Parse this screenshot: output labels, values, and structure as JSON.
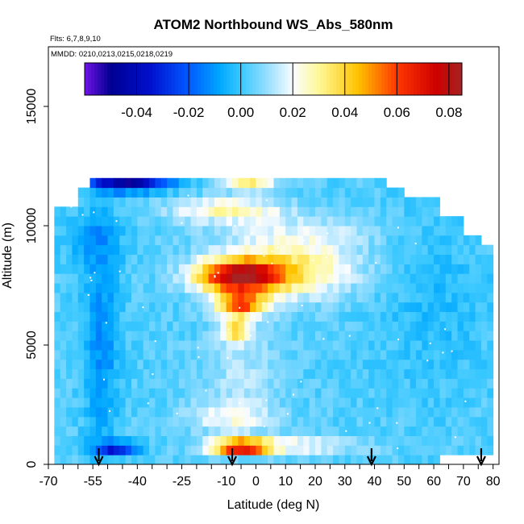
{
  "chart_data": {
    "type": "heatmap",
    "title": "ATOM2 Northbound WS_Abs_580nm",
    "flights_label": "Flts: 6,7,8,9,10",
    "dates_label": "MMDD: 0210,0213,0215,0218,0219",
    "xlabel": "Latitude (deg N)",
    "ylabel": "Altitude (m)",
    "xlim": [
      -70,
      82
    ],
    "ylim": [
      0,
      17500
    ],
    "x_tick_labels": [
      "-70",
      "-55",
      "-40",
      "-25",
      "-10",
      "0",
      "10",
      "20",
      "30",
      "40",
      "50",
      "60",
      "70",
      "80"
    ],
    "y_tick_labels": [
      "0",
      "5000",
      "10000",
      "15000"
    ],
    "colorbar": {
      "range": [
        -0.06,
        0.085
      ],
      "tick_labels": [
        "-0.04",
        "-0.02",
        "0.00",
        "0.02",
        "0.04",
        "0.06",
        "0.08"
      ]
    },
    "grid_cell": {
      "lat_step": 2,
      "alt_step": 400,
      "lat_start": -68,
      "lat_end": 80
    },
    "row_extents": [
      {
        "alt_min": 0,
        "alt_max": 400,
        "lat_min": -68,
        "lat_max": 62
      },
      {
        "alt_min": 400,
        "alt_max": 11000,
        "lat_min": -68,
        "lat_max": 80
      },
      {
        "alt_min": 11000,
        "alt_max": 11500,
        "lat_min": -60,
        "lat_max": 50
      },
      {
        "alt_min": 11500,
        "alt_max": 12000,
        "lat_min": -56,
        "lat_max": 43
      }
    ],
    "features": [
      {
        "name": "upper-troposphere-absorbing-plume",
        "lat": -5,
        "alt": 7800,
        "value": 0.075
      },
      {
        "name": "boundary-layer-absorbing-layer",
        "lat": -5,
        "alt": 800,
        "value": 0.08
      },
      {
        "name": "southern-high-altitude-negative",
        "lat": -45,
        "alt": 11700,
        "value": -0.045
      },
      {
        "name": "southern-low-altitude-negative",
        "lat": -48,
        "alt": 700,
        "value": -0.035
      },
      {
        "name": "mid-troposphere-background",
        "lat": 30,
        "alt": 4000,
        "value": 0.005
      }
    ],
    "flight_markers": [
      -53,
      -8,
      39,
      76
    ]
  }
}
